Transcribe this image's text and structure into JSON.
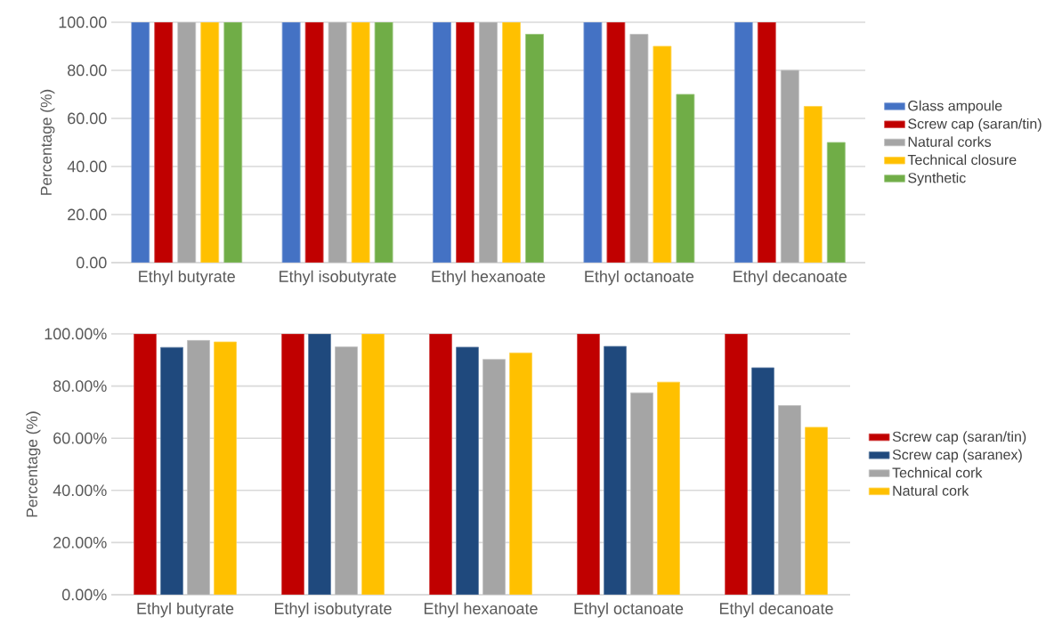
{
  "chart_data": [
    {
      "type": "bar",
      "ylabel": "Percentage (%)",
      "categories": [
        "Ethyl butyrate",
        "Ethyl isobutyrate",
        "Ethyl hexanoate",
        "Ethyl octanoate",
        "Ethyl decanoate"
      ],
      "series": [
        {
          "name": "Glass ampoule",
          "color": "#4472c4",
          "values": [
            100,
            100,
            100,
            100,
            100
          ]
        },
        {
          "name": "Screw cap (saran/tin)",
          "color": "#c00000",
          "values": [
            100,
            100,
            100,
            100,
            100
          ]
        },
        {
          "name": "Natural corks",
          "color": "#a5a5a5",
          "values": [
            100,
            100,
            100,
            95,
            80
          ]
        },
        {
          "name": "Technical closure",
          "color": "#ffc000",
          "values": [
            100,
            100,
            100,
            90,
            65
          ]
        },
        {
          "name": "Synthetic",
          "color": "#70ad47",
          "values": [
            100,
            100,
            95,
            70,
            50
          ]
        }
      ],
      "ylim": [
        0,
        100
      ],
      "yticks": [
        {
          "value": 0,
          "label": "0.00"
        },
        {
          "value": 20,
          "label": "20.00"
        },
        {
          "value": 40,
          "label": "40.00"
        },
        {
          "value": 60,
          "label": "60.00"
        },
        {
          "value": 80,
          "label": "80.00"
        },
        {
          "value": 100,
          "label": "100.00"
        }
      ],
      "grid": "y",
      "legend": "right"
    },
    {
      "type": "bar",
      "ylabel": "Percentage (%)",
      "categories": [
        "Ethyl butyrate",
        "Ethyl isobutyrate",
        "Ethyl hexanoate",
        "Ethyl octanoate",
        "Ethyl decanoate"
      ],
      "series": [
        {
          "name": "Screw cap (saran/tin)",
          "color": "#c00000",
          "values": [
            100,
            100,
            100,
            100,
            100
          ]
        },
        {
          "name": "Screw cap (saranex)",
          "color": "#1f497d",
          "values": [
            94.8,
            100,
            94.9,
            95.2,
            87.0
          ]
        },
        {
          "name": "Technical cork",
          "color": "#a5a5a5",
          "values": [
            97.5,
            95.0,
            90.2,
            77.4,
            72.5
          ]
        },
        {
          "name": "Natural cork",
          "color": "#ffc000",
          "values": [
            96.9,
            100,
            92.7,
            81.5,
            64.2
          ]
        }
      ],
      "ylim": [
        0,
        100
      ],
      "yticks": [
        {
          "value": 0,
          "label": "0.00%"
        },
        {
          "value": 20,
          "label": "20.00%"
        },
        {
          "value": 40,
          "label": "40.00%"
        },
        {
          "value": 60,
          "label": "60.00%"
        },
        {
          "value": 80,
          "label": "80.00%"
        },
        {
          "value": 100,
          "label": "100.00%"
        }
      ],
      "grid": "y",
      "legend": "right"
    }
  ]
}
